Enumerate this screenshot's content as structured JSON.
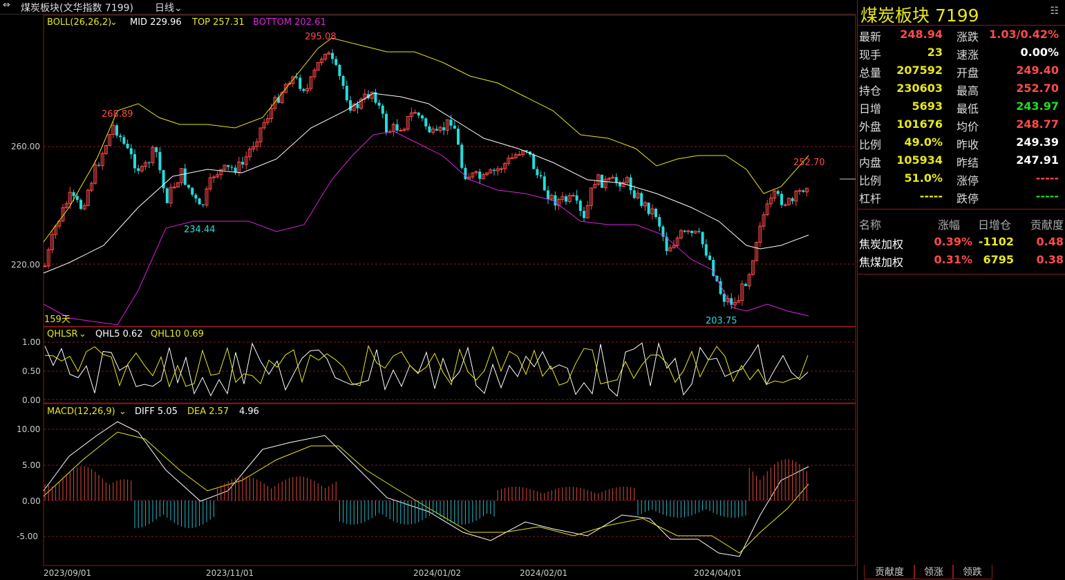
{
  "window": {
    "title": "煤炭板块(文华指数 7199)",
    "period": "日线"
  },
  "main_chart": {
    "indicator": "BOLL(26,26,2)",
    "mid_label": "MID 229.96",
    "top_label": "TOP 257.31",
    "bottom_label": "BOTTOM 202.61",
    "price_ticks": [
      "260.00",
      "220.00"
    ],
    "annotations": {
      "high1": "268.89",
      "high2": "295.08",
      "low1": "234.44",
      "low2": "203.75",
      "last_high": "252.70",
      "days": "159天"
    }
  },
  "qhl_chart": {
    "indicator": "QHLSR",
    "qhl5": "QHL5 0.62",
    "qhl10": "QHL10 0.69",
    "ticks": [
      "1.00",
      "0.50",
      "0.00"
    ]
  },
  "macd_chart": {
    "indicator": "MACD(12,26,9)",
    "diff": "DIFF 5.05",
    "dea": "DEA 2.57",
    "macd": "4.96",
    "ticks": [
      "10.00",
      "5.00",
      "0.00",
      "-5.00"
    ]
  },
  "xaxis": [
    "2023/09/01",
    "2023/11/01",
    "2024/01/02",
    "2024/02/01",
    "2024/04/01"
  ],
  "quote": {
    "title": "煤炭板块  7199",
    "rows": [
      {
        "l": "最新",
        "v": "248.94",
        "l2": "涨跌",
        "v2": "1.03/0.42%"
      },
      {
        "l": "现手",
        "v": "23",
        "l2": "速涨",
        "v2": "0.00%"
      },
      {
        "l": "总量",
        "v": "207592",
        "l2": "开盘",
        "v2": "249.40"
      },
      {
        "l": "持仓",
        "v": "230603",
        "l2": "最高",
        "v2": "252.70"
      },
      {
        "l": "日增",
        "v": "5693",
        "l2": "最低",
        "v2": "243.97"
      },
      {
        "l": "外盘",
        "v": "101676",
        "l2": "均价",
        "v2": "248.77"
      },
      {
        "l": "比例",
        "v": "49.0%",
        "l2": "昨收",
        "v2": "249.39"
      },
      {
        "l": "内盘",
        "v": "105934",
        "l2": "昨结",
        "v2": "247.91"
      },
      {
        "l": "比例",
        "v": "51.0%",
        "l2": "涨停",
        "v2": "-----"
      },
      {
        "l": "杠杆",
        "v": "-----",
        "l2": "跌停",
        "v2": "-----"
      }
    ]
  },
  "components": {
    "headers": [
      "名称",
      "涨幅",
      "日增仓",
      "贡献度"
    ],
    "rows": [
      {
        "name": "焦炭加权",
        "chg": "0.39%",
        "oi": "-1102",
        "contrib": "0.48"
      },
      {
        "name": "焦煤加权",
        "chg": "0.31%",
        "oi": "6795",
        "contrib": "0.38"
      }
    ]
  },
  "tabs": [
    "贡献度",
    "领涨",
    "领跌"
  ],
  "colors": {
    "up": "#ff4b4b",
    "down": "#22dddd",
    "mid": "#ffffff",
    "top": "#e8e81a",
    "bottom": "#e020e0",
    "grid": "#8b1a1a"
  }
}
